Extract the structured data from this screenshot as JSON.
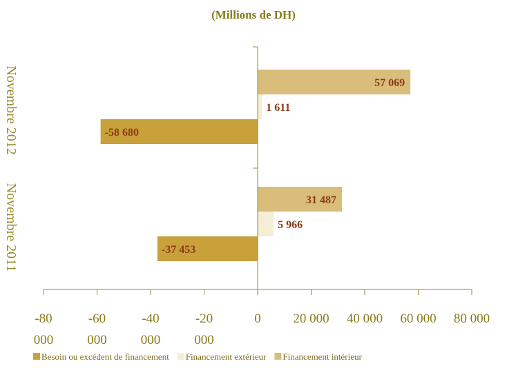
{
  "chart_data": {
    "type": "bar",
    "orientation": "horizontal",
    "title": "(Millions de DH)",
    "categories": [
      "Novembre 2012",
      "Novembre 2011"
    ],
    "series": [
      {
        "name": "Financement intérieur",
        "values": [
          57069,
          31487
        ],
        "labels": [
          "57 069",
          "31 487"
        ],
        "color": "#d9bd7a"
      },
      {
        "name": "Financement extérieur",
        "values": [
          1611,
          5966
        ],
        "labels": [
          "1 611",
          "5 966"
        ],
        "color": "#f5edd6"
      },
      {
        "name": "Besoin ou excédent de financement",
        "values": [
          -58680,
          -37453
        ],
        "labels": [
          "-58 680",
          "-37 453"
        ],
        "color": "#c9a13a"
      }
    ],
    "legend_order": [
      "Besoin ou excédent de financement",
      "Financement extérieur",
      "Financement intérieur"
    ],
    "xlim": [
      -80000,
      80000
    ],
    "xticks": [
      -80000,
      -60000,
      -40000,
      -20000,
      0,
      20000,
      40000,
      60000,
      80000
    ],
    "xtick_labels": [
      "-80 000",
      "-60 000",
      "-40 000",
      "-20 000",
      "0",
      "20 000",
      "40 000",
      "60 000",
      "80 000"
    ],
    "legend_position": "bottom",
    "grid": false,
    "axis_color": "#9a8a2a"
  }
}
